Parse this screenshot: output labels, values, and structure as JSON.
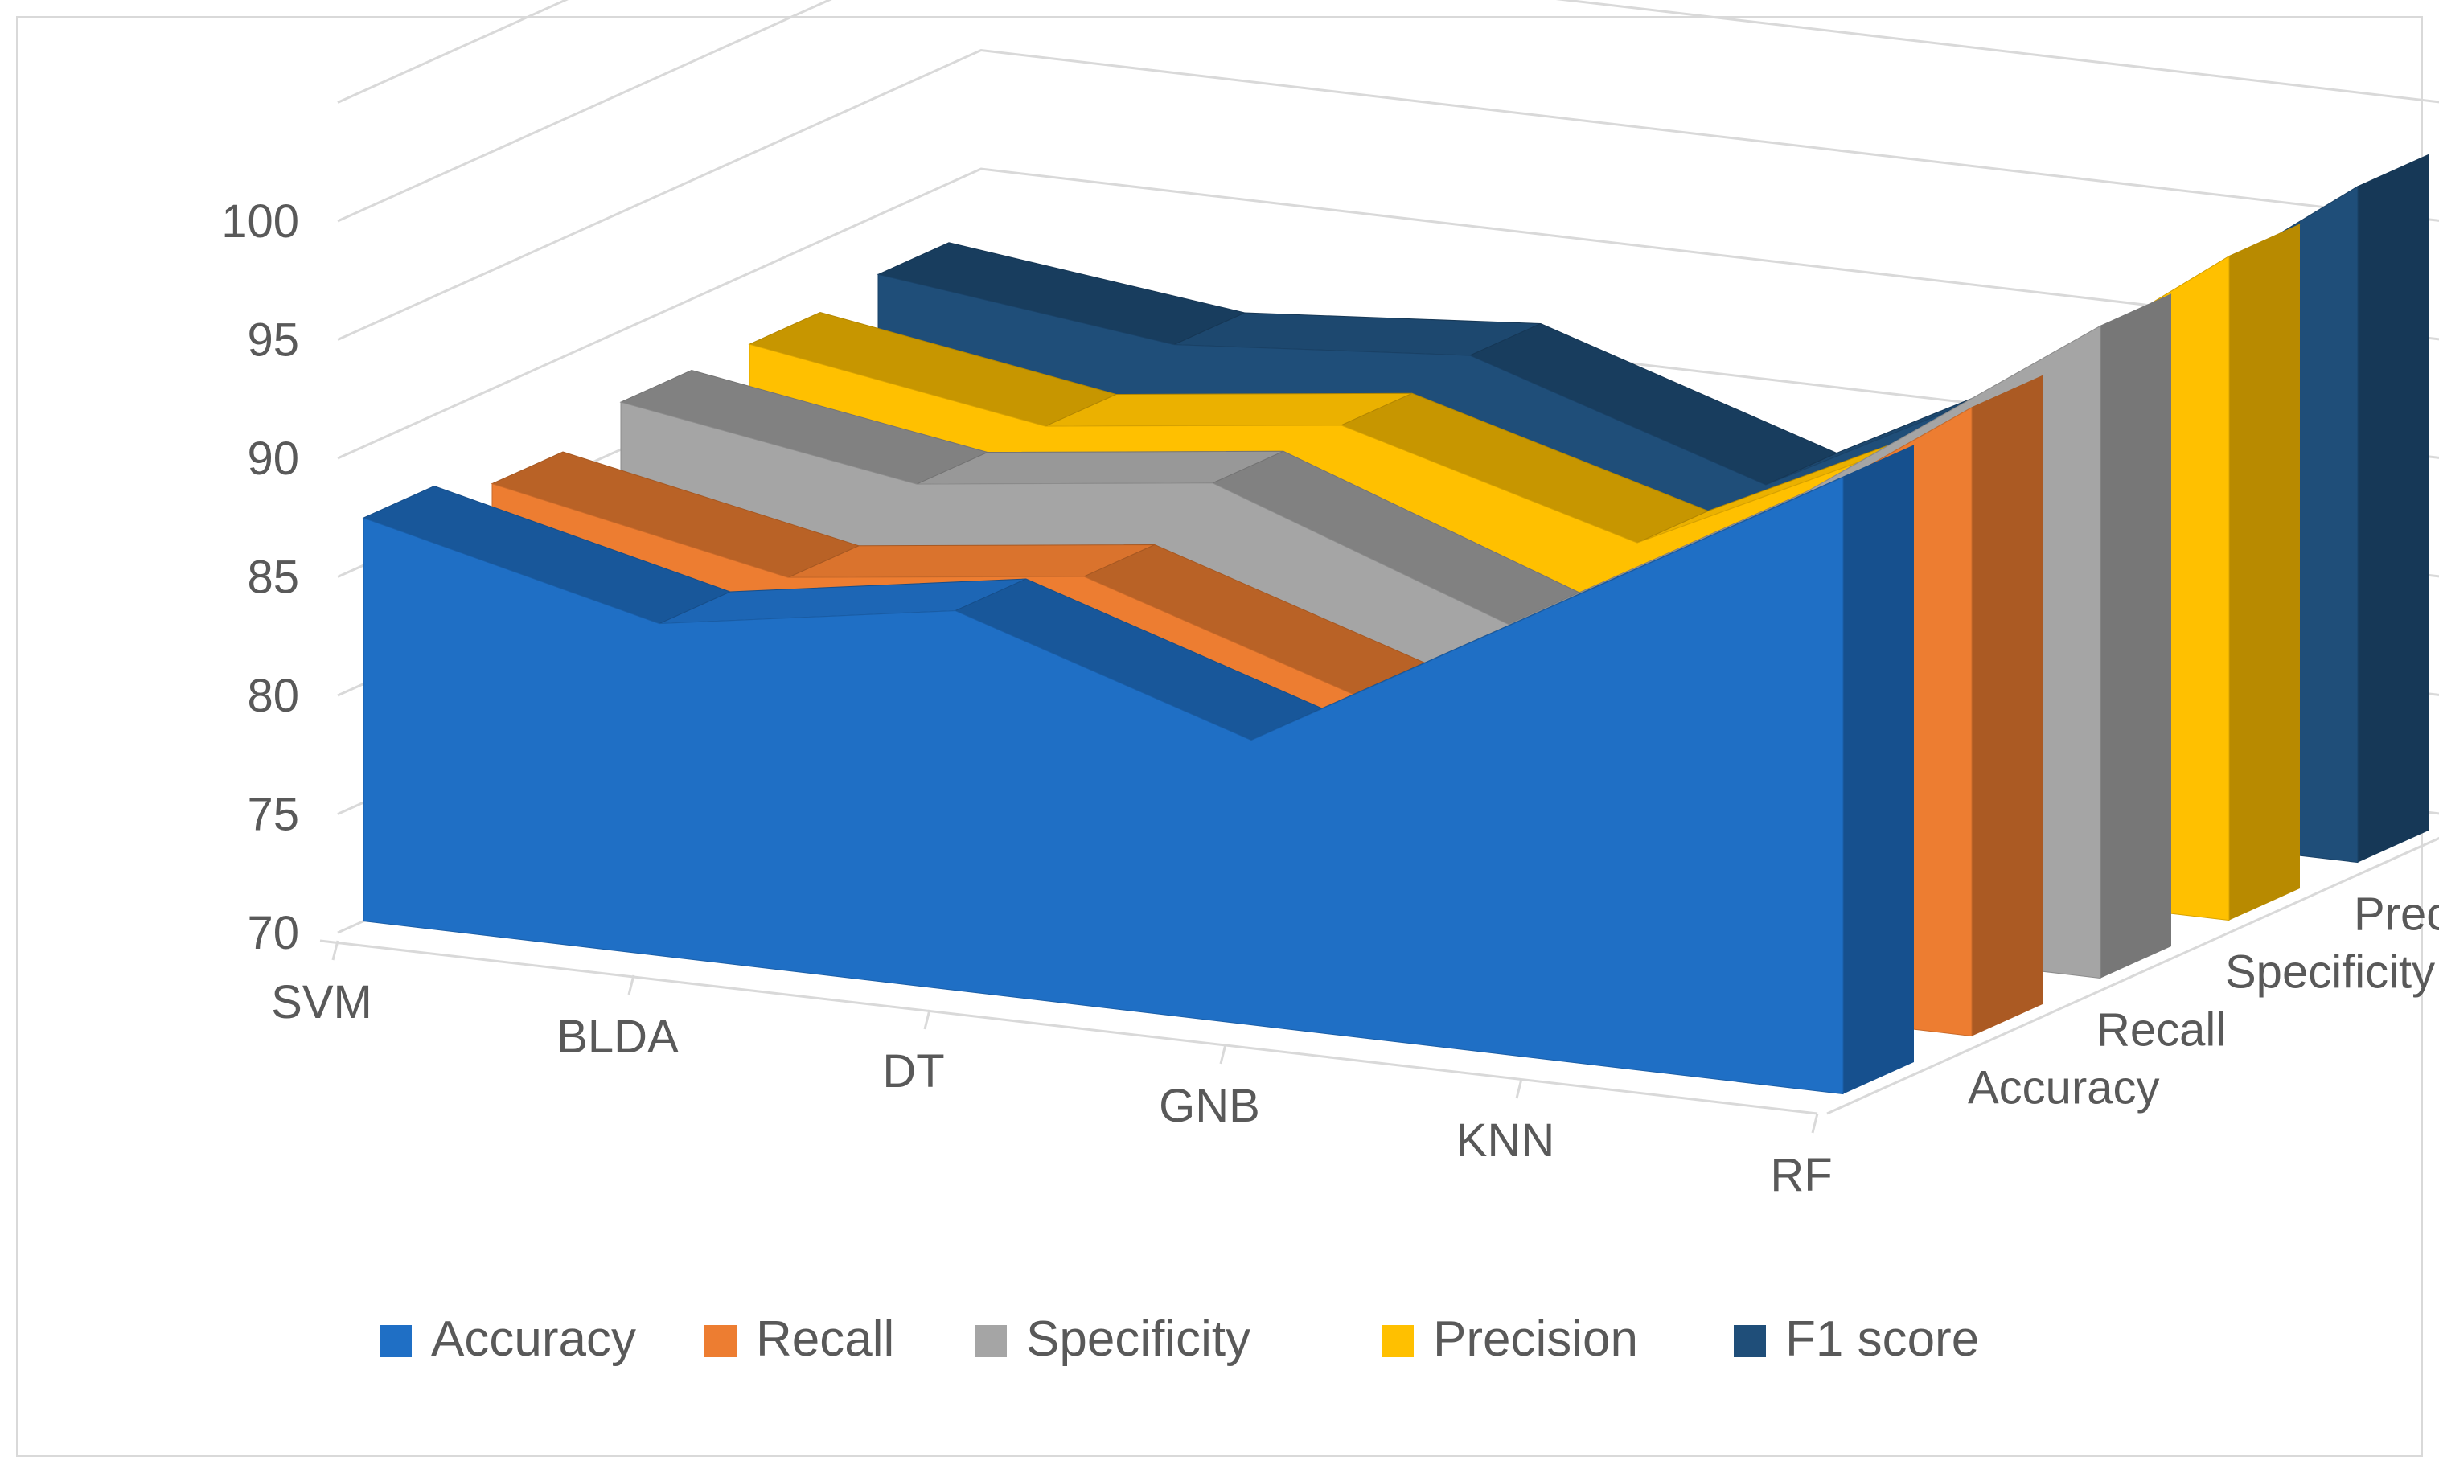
{
  "chart_data": {
    "type": "area",
    "subtype": "3d-area",
    "title": "",
    "xlabel": "",
    "ylabel": "",
    "categories": [
      "SVM",
      "BLDA",
      "DT",
      "GNB",
      "KNN",
      "RF"
    ],
    "y_ticks": [
      "70",
      "75",
      "80",
      "85",
      "90",
      "95",
      "100"
    ],
    "ylim": [
      70,
      100
    ],
    "grid": true,
    "legend": "bottom",
    "series": [
      {
        "name": "Accuracy",
        "color": "#1f6fc5",
        "values": [
          87,
          84,
          86,
          82,
          89,
          96
        ]
      },
      {
        "name": "Recall",
        "color": "#ed7d31",
        "values": [
          86,
          83.5,
          85,
          81,
          88,
          96.5
        ]
      },
      {
        "name": "Specificity",
        "color": "#a5a5a5",
        "values": [
          87,
          85,
          86.5,
          82,
          89,
          97.5
        ]
      },
      {
        "name": "Precision",
        "color": "#ffc000",
        "values": [
          87,
          85,
          86.5,
          83,
          89,
          98
        ]
      },
      {
        "name": "F1 score",
        "color": "#1f4e79",
        "values": [
          87.5,
          86,
          87,
          83,
          89.5,
          98.5
        ]
      }
    ]
  }
}
